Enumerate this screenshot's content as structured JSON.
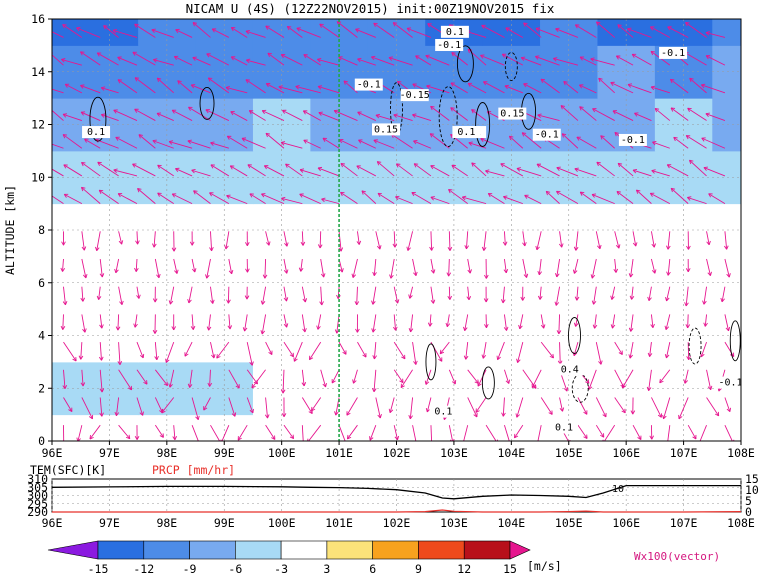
{
  "title": "NICAM U (4S) (12Z22NOV2015) init:00Z19NOV2015 fix",
  "main_plot": {
    "ylabel": "ALTITUDE [km]",
    "x_ticks": [
      "96E",
      "97E",
      "98E",
      "99E",
      "100E",
      "101E",
      "102E",
      "103E",
      "104E",
      "105E",
      "106E",
      "107E",
      "108E"
    ],
    "y_ticks": [
      "0",
      "2",
      "4",
      "6",
      "8",
      "10",
      "12",
      "14",
      "16"
    ],
    "marker_longitude": "101E",
    "contour_labels": [
      "0.1",
      "0.1",
      "-0.1",
      "-0.1",
      "-0.1",
      "-0.15",
      "0.15",
      "0.15",
      "0.1",
      "0.1",
      "-0.1",
      "-0.1",
      "0.4",
      "-0.1",
      "0.1",
      "0.1"
    ]
  },
  "bottom_panel": {
    "left_label": "TEM(SFC)[K]",
    "right_label": "PRCP [mm/hr]",
    "left_ticks": [
      "310",
      "305",
      "300",
      "295",
      "290"
    ],
    "right_ticks": [
      "15",
      "10",
      "5",
      "0"
    ],
    "x_ticks": [
      "96E",
      "97E",
      "98E",
      "99E",
      "100E",
      "101E",
      "102E",
      "103E",
      "104E",
      "105E",
      "106E",
      "107E",
      "108E"
    ],
    "inline_label": "10"
  },
  "colorbar": {
    "labels": [
      "-15",
      "-12",
      "-9",
      "-6",
      "-3",
      "3",
      "6",
      "9",
      "12",
      "15"
    ],
    "unit": "[m/s]",
    "vector_note": "Wx100(vector)",
    "colors": [
      "#8b1ae0",
      "#2a6fe0",
      "#4d8ce8",
      "#78aaf0",
      "#a8daf5",
      "#ffffff",
      "#fce37a",
      "#f7a21e",
      "#ee4a1c",
      "#b8101a",
      "#e6168f"
    ]
  },
  "chart_data": [
    {
      "type": "heatmap",
      "title": "NICAM U (4S) (12Z22NOV2015) init:00Z19NOV2015 fix",
      "xlabel": "",
      "ylabel": "ALTITUDE [km]",
      "xlim": [
        96,
        108
      ],
      "ylim": [
        0,
        16
      ],
      "x": [
        96,
        97,
        98,
        99,
        100,
        101,
        102,
        103,
        104,
        105,
        106,
        107,
        108
      ],
      "y": [
        0,
        2,
        4,
        6,
        8,
        10,
        12,
        14,
        16
      ],
      "values": [
        [
          -3,
          -3,
          -3,
          -3,
          -3,
          -3,
          -3,
          0,
          0,
          -3,
          -3,
          -3,
          0
        ],
        [
          -6,
          -6,
          -6,
          -6,
          -3,
          -3,
          -3,
          -3,
          -3,
          -3,
          -3,
          -3,
          -3
        ],
        [
          -3,
          -3,
          -3,
          -3,
          -3,
          0,
          -3,
          -3,
          -3,
          -3,
          -3,
          -3,
          0
        ],
        [
          -3,
          0,
          -3,
          0,
          0,
          -3,
          0,
          0,
          -3,
          0,
          0,
          0,
          0
        ],
        [
          -3,
          -3,
          -3,
          -3,
          -3,
          -3,
          0,
          0,
          0,
          0,
          0,
          0,
          -3
        ],
        [
          -6,
          -6,
          -6,
          -6,
          -6,
          -6,
          -6,
          -6,
          -6,
          -6,
          -6,
          -6,
          -6
        ],
        [
          -9,
          -9,
          -9,
          -9,
          -6,
          -9,
          -9,
          -9,
          -9,
          -9,
          -9,
          -6,
          -9
        ],
        [
          -12,
          -12,
          -12,
          -12,
          -12,
          -12,
          -12,
          -12,
          -12,
          -12,
          -9,
          -12,
          -9
        ],
        [
          -15,
          -15,
          -12,
          -12,
          -12,
          -12,
          -12,
          -15,
          -15,
          -12,
          -15,
          -15,
          -12
        ]
      ],
      "levels": [
        -15,
        -12,
        -9,
        -6,
        -3,
        3,
        6,
        9,
        12,
        15
      ],
      "units": "[m/s]",
      "vector_scale": "Wx100(vector)",
      "marker_x": 101,
      "grid": true
    },
    {
      "type": "line",
      "xlabel": "",
      "xlim": [
        96,
        108
      ],
      "x": [
        96,
        97,
        98,
        99,
        100,
        100.5,
        101,
        101.5,
        102,
        102.5,
        102.8,
        103,
        103.5,
        104,
        104.5,
        105,
        105.3,
        105.6,
        106,
        107,
        108
      ],
      "series": [
        {
          "name": "TEM(SFC)[K]",
          "axis": "left",
          "ylim": [
            290,
            310
          ],
          "values": [
            305,
            305.2,
            305.5,
            305.5,
            305.3,
            305,
            304.8,
            304.3,
            303.5,
            301.5,
            298.5,
            298,
            299.5,
            300.3,
            300,
            299.5,
            298.8,
            301.5,
            306,
            306,
            306
          ]
        },
        {
          "name": "PRCP [mm/hr]",
          "axis": "right",
          "ylim": [
            0,
            15
          ],
          "values": [
            0,
            0,
            0,
            0,
            0,
            0,
            0,
            0,
            0,
            0.2,
            0.9,
            0.3,
            0,
            0,
            0,
            0.2,
            0.4,
            0,
            0,
            0,
            0.2
          ]
        }
      ]
    }
  ]
}
